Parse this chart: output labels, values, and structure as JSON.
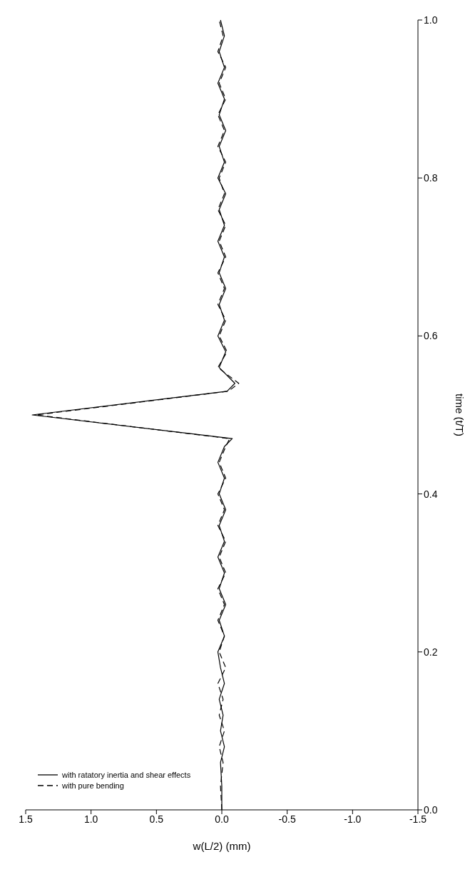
{
  "chart_data": {
    "type": "line",
    "xlabel": "w(L/2) (mm)",
    "ylabel": "time (t/T)",
    "xlim": [
      1.5,
      -1.5
    ],
    "xticks": [
      {
        "value": -1.5,
        "label": "-1.5"
      },
      {
        "value": -1,
        "label": "-1.0"
      },
      {
        "value": -0.5,
        "label": "-0.5"
      },
      {
        "value": 0,
        "label": "0.0"
      },
      {
        "value": 0.5,
        "label": "0.5"
      },
      {
        "value": 1,
        "label": "1.0"
      },
      {
        "value": 1.5,
        "label": "1.5"
      }
    ],
    "ylim": [
      0,
      1
    ],
    "yticks": [
      {
        "value": 0,
        "label": "0.0"
      },
      0.2,
      0.4,
      0.6,
      0.8,
      {
        "value": 1,
        "label": "1.0"
      }
    ],
    "grid": false,
    "legend": "bottom left",
    "marker": "none",
    "series": [
      {
        "name": "with ratatory inertia and shear effects",
        "color": "#000000",
        "line_style": "solid",
        "values": [
          0,
          0.03,
          0.06,
          0.08,
          0.1,
          0.12,
          0.14,
          0.16,
          0.18,
          0.2,
          0.22,
          0.24,
          0.26,
          0.28,
          0.3,
          0.32,
          0.34,
          0.36,
          0.38,
          0.4,
          0.42,
          0.44,
          0.46,
          0.47,
          0.5,
          0.53,
          0.54,
          0.56,
          0.58,
          0.6,
          0.62,
          0.64,
          0.66,
          0.68,
          0.7,
          0.72,
          0.74,
          0.76,
          0.78,
          0.8,
          0.82,
          0.84,
          0.86,
          0.88,
          0.9,
          0.92,
          0.94,
          0.96,
          0.98,
          1.0
        ],
        "x": [
          0,
          0,
          0.01,
          -0.02,
          0.01,
          -0.01,
          0.02,
          -0.02,
          0.01,
          0.03,
          -0.02,
          0.02,
          -0.03,
          0.02,
          -0.02,
          0.03,
          -0.02,
          0.02,
          -0.03,
          0.02,
          -0.02,
          0.03,
          -0.02,
          -0.08,
          1.45,
          -0.04,
          -0.1,
          0.02,
          -0.03,
          0.03,
          -0.02,
          0.02,
          -0.03,
          0.02,
          -0.02,
          0.03,
          -0.02,
          0.02,
          -0.03,
          0.03,
          -0.02,
          0.02,
          -0.03,
          0.02,
          -0.02,
          0.03,
          -0.02,
          0.02,
          -0.02,
          0.01
        ]
      },
      {
        "name": "with pure bending",
        "color": "#000000",
        "line_style": "dashed",
        "values": [
          0,
          0.03,
          0.06,
          0.08,
          0.1,
          0.12,
          0.14,
          0.16,
          0.18,
          0.2,
          0.22,
          0.24,
          0.26,
          0.28,
          0.3,
          0.32,
          0.34,
          0.36,
          0.38,
          0.4,
          0.42,
          0.44,
          0.46,
          0.47,
          0.5,
          0.53,
          0.54,
          0.56,
          0.58,
          0.6,
          0.62,
          0.64,
          0.66,
          0.68,
          0.7,
          0.72,
          0.74,
          0.76,
          0.78,
          0.8,
          0.82,
          0.84,
          0.86,
          0.88,
          0.9,
          0.92,
          0.94,
          0.96,
          0.98,
          1.0
        ],
        "x": [
          0,
          0.01,
          -0.01,
          0.02,
          -0.02,
          0.02,
          -0.01,
          0.03,
          -0.03,
          0.02,
          -0.02,
          0.03,
          -0.02,
          0.03,
          -0.03,
          0.02,
          -0.03,
          0.03,
          -0.02,
          0.03,
          -0.03,
          0.02,
          -0.03,
          -0.06,
          1.42,
          -0.05,
          -0.13,
          0.03,
          -0.04,
          0.02,
          -0.03,
          0.03,
          -0.02,
          0.03,
          -0.03,
          0.02,
          -0.03,
          0.03,
          -0.02,
          0.02,
          -0.03,
          0.03,
          -0.02,
          0.03,
          -0.03,
          0.02,
          -0.03,
          0.03,
          -0.01,
          0.02
        ]
      }
    ]
  }
}
